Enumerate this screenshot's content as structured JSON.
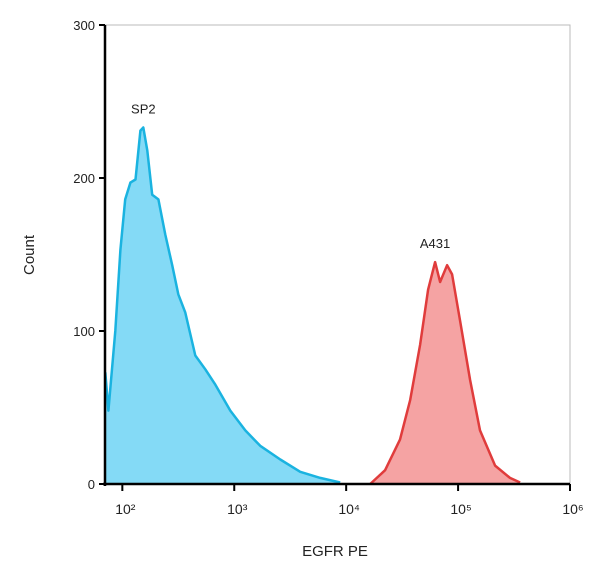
{
  "chart_data": {
    "type": "area",
    "xlabel": "EGFR PE",
    "ylabel": "Count",
    "xscale": "log",
    "xlim": [
      70,
      1000000
    ],
    "ylim": [
      0,
      300
    ],
    "xticks": [
      {
        "value": 100,
        "label": "10²"
      },
      {
        "value": 1000,
        "label": "10³"
      },
      {
        "value": 10000,
        "label": "10⁴"
      },
      {
        "value": 100000,
        "label": "10⁵"
      },
      {
        "value": 1000000,
        "label": "10⁶"
      }
    ],
    "yticks": [
      0,
      100,
      200,
      300
    ],
    "series": [
      {
        "name": "SP2",
        "color": "#1ab3e0",
        "fill": "#84daf6",
        "x": [
          70.5,
          75,
          86.6,
          96,
          106,
          118,
          131,
          145,
          154,
          167,
          185,
          210,
          242,
          279,
          316,
          365,
          449,
          551,
          677,
          921,
          1254,
          1706,
          2577,
          3883,
          5860,
          8840
        ],
        "values": [
          73,
          48,
          100,
          153,
          186,
          197,
          199,
          231,
          233,
          218,
          189,
          186,
          163,
          143,
          124,
          112,
          84,
          75,
          65,
          48,
          35,
          25,
          16,
          8,
          4,
          1
        ]
      },
      {
        "name": "A431",
        "color": "#e03c3c",
        "fill": "#f5a3a3",
        "x": [
          16400,
          22300,
          30300,
          37300,
          45800,
          54000,
          62300,
          69100,
          79700,
          88400,
          104000,
          128000,
          157000,
          214000,
          291000,
          358000
        ],
        "values": [
          0,
          9,
          29,
          55,
          91,
          127,
          145,
          132,
          143,
          137,
          107,
          68,
          35,
          12,
          4,
          1
        ]
      }
    ]
  }
}
